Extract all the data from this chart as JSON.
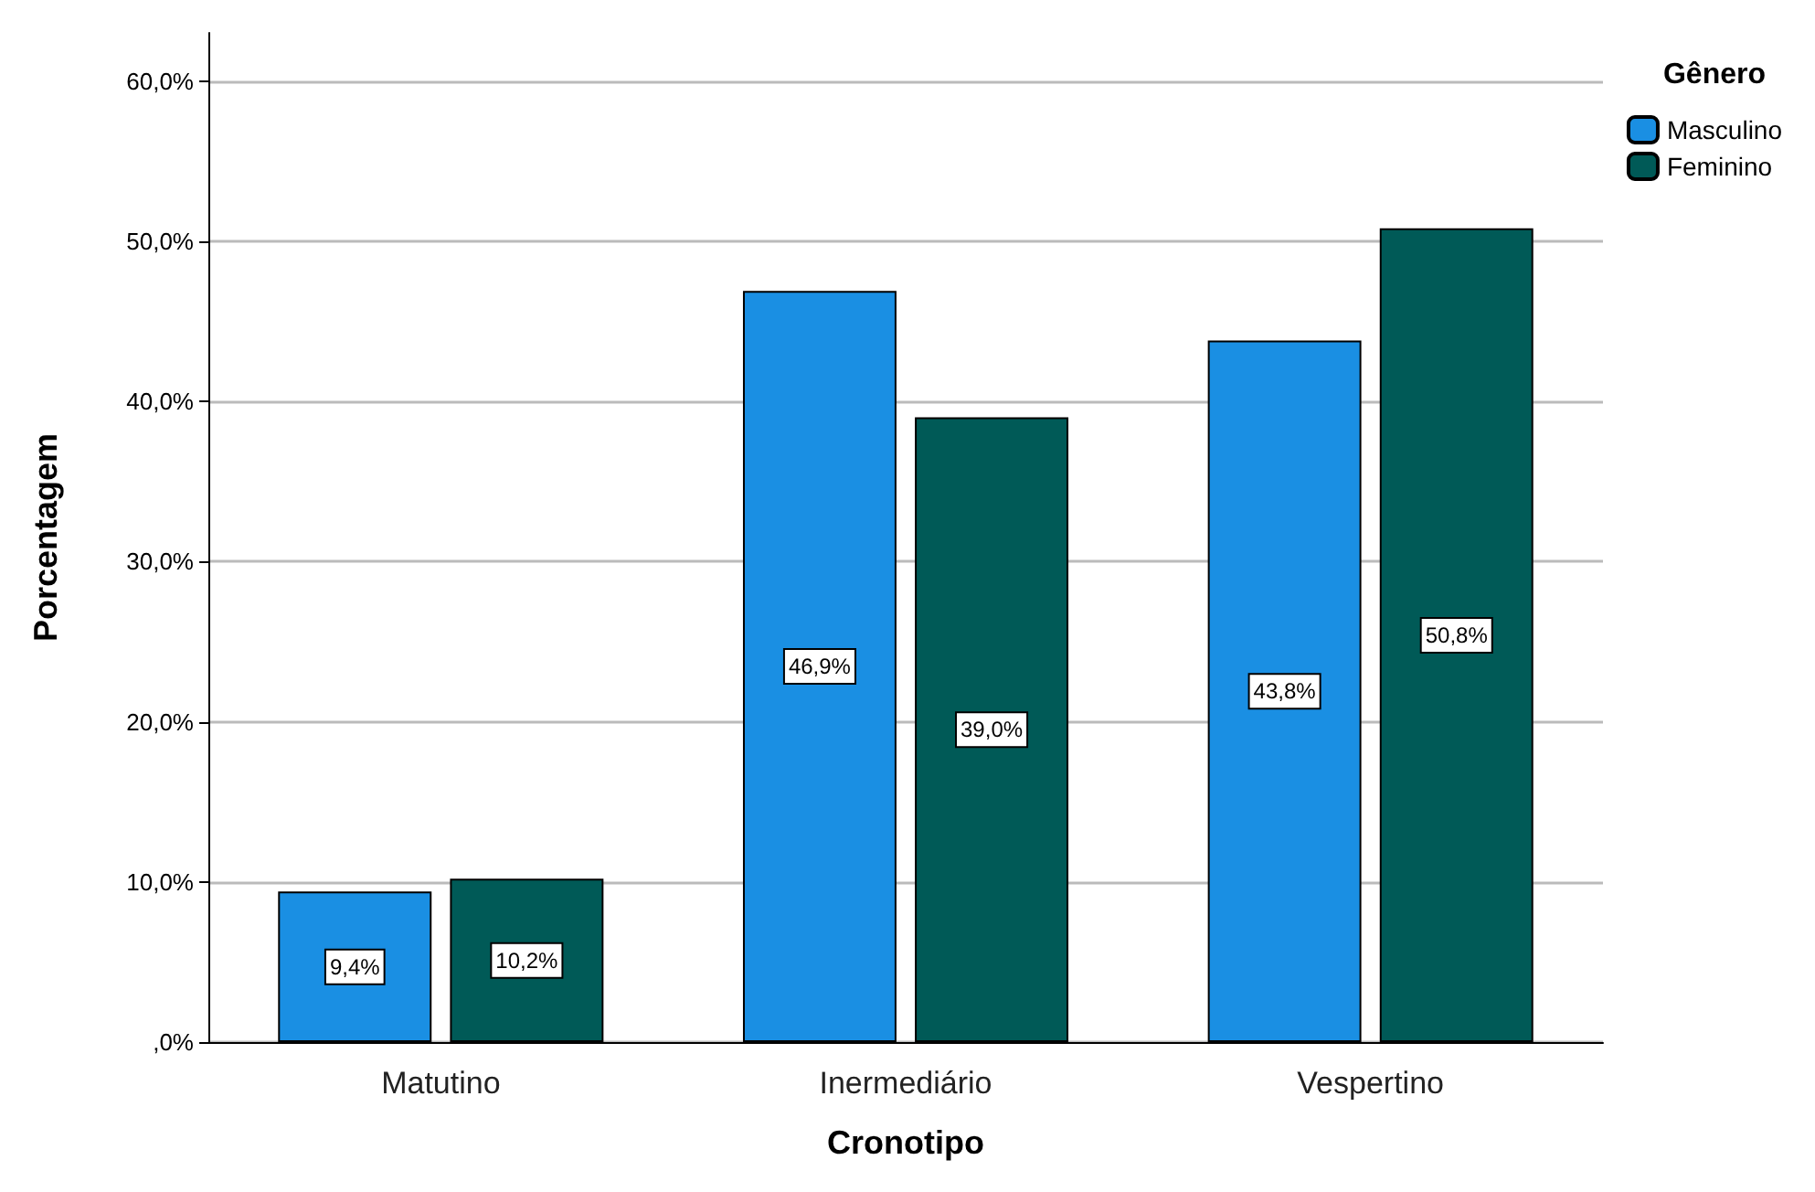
{
  "chart_data": {
    "type": "bar",
    "xlabel": "Cronotipo",
    "ylabel": "Porcentagem",
    "legend_title": "Gênero",
    "categories": [
      "Matutino",
      "Inermediário",
      "Vespertino"
    ],
    "series": [
      {
        "name": "Masculino",
        "color": "#1a8fe3",
        "values": [
          9.4,
          46.9,
          43.8
        ],
        "value_labels": [
          "9,4%",
          "46,9%",
          "43,8%"
        ]
      },
      {
        "name": "Feminino",
        "color": "#005a57",
        "values": [
          10.2,
          39.0,
          50.8
        ],
        "value_labels": [
          "10,2%",
          "39,0%",
          "50,8%"
        ]
      }
    ],
    "ylim": [
      0,
      63
    ],
    "yticks": [
      {
        "value": 0,
        "label": ",0%"
      },
      {
        "value": 10,
        "label": "10,0%"
      },
      {
        "value": 20,
        "label": "20,0%"
      },
      {
        "value": 30,
        "label": "30,0%"
      },
      {
        "value": 40,
        "label": "40,0%"
      },
      {
        "value": 50,
        "label": "50,0%"
      },
      {
        "value": 60,
        "label": "60,0%"
      }
    ],
    "grid": "y",
    "legend": "top right"
  }
}
